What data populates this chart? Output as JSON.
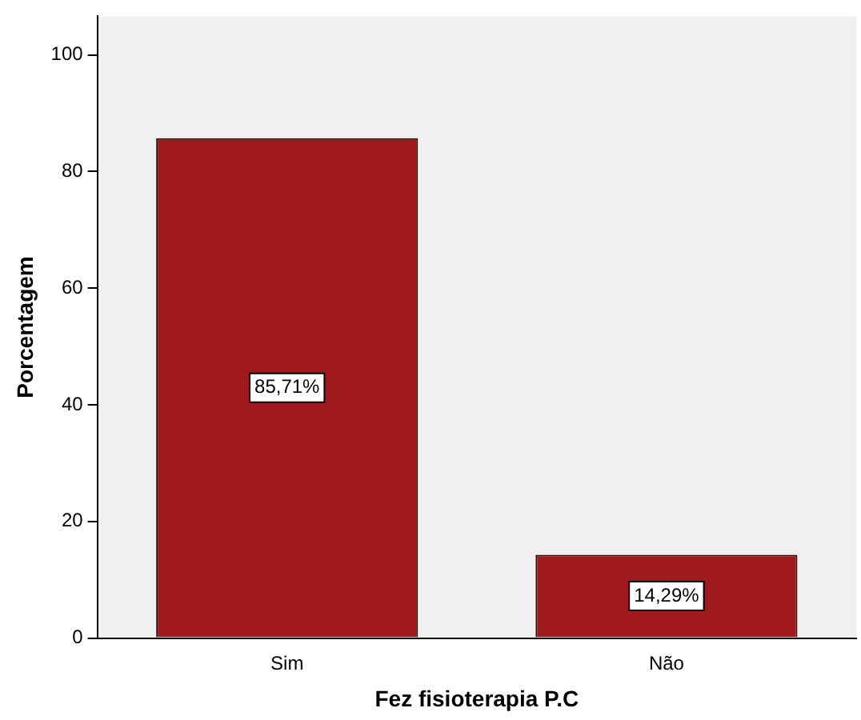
{
  "chart_data": {
    "type": "bar",
    "xlabel": "Fez fisioterapia P.C",
    "ylabel": "Porcentagem",
    "categories": [
      "Sim",
      "Não"
    ],
    "values": [
      85.71,
      14.29
    ],
    "value_labels": [
      "85,71%",
      "14,29%"
    ],
    "color": "#a0191d",
    "ylim": [
      0,
      106.6
    ],
    "yticks": [
      0,
      20,
      40,
      60,
      80,
      100
    ],
    "grid": false,
    "legend": false
  }
}
